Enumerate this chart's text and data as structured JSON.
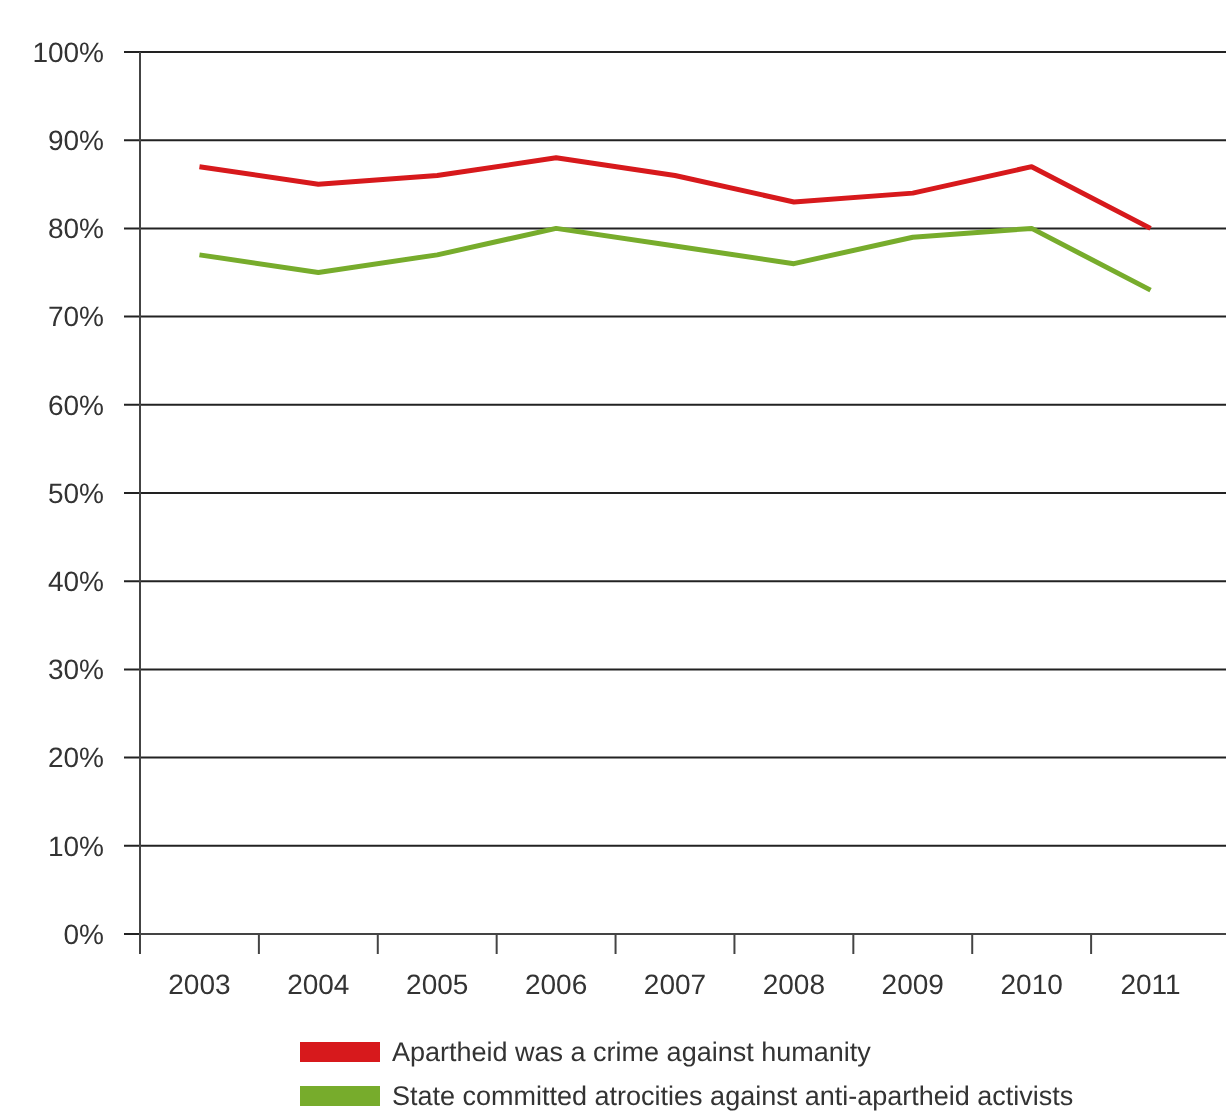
{
  "chart_data": {
    "type": "line",
    "categories": [
      "2003",
      "2004",
      "2005",
      "2006",
      "2007",
      "2008",
      "2009",
      "2010",
      "2011"
    ],
    "series": [
      {
        "name": "Apartheid was a crime against humanity",
        "color": "#d7191c",
        "values": [
          87,
          85,
          86,
          88,
          86,
          83,
          84,
          87,
          80
        ]
      },
      {
        "name": "State committed atrocities against anti-apartheid activists",
        "color": "#77ac2c",
        "values": [
          77,
          75,
          77,
          80,
          78,
          76,
          79,
          80,
          73
        ]
      }
    ],
    "ylim": [
      0,
      100
    ],
    "yticks": [
      {
        "value": 0,
        "label": "0%"
      },
      {
        "value": 10,
        "label": "10%"
      },
      {
        "value": 20,
        "label": "20%"
      },
      {
        "value": 30,
        "label": "30%"
      },
      {
        "value": 40,
        "label": "40%"
      },
      {
        "value": 50,
        "label": "50%"
      },
      {
        "value": 60,
        "label": "60%"
      },
      {
        "value": 70,
        "label": "70%"
      },
      {
        "value": 80,
        "label": "80%"
      },
      {
        "value": 90,
        "label": "90%"
      },
      {
        "value": 100,
        "label": "100%"
      }
    ],
    "grid": "y",
    "legend": "bottom",
    "marker": "none",
    "line_style": "solid"
  }
}
